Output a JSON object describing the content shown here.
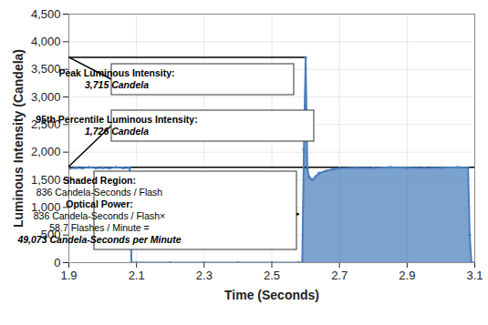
{
  "chart_data": {
    "type": "area",
    "xlabel": "Time (Seconds)",
    "ylabel": "Luminous Intensity (Candela)",
    "x": [
      1.9,
      1.92,
      1.94,
      1.96,
      1.98,
      2.0,
      2.02,
      2.04,
      2.06,
      2.08,
      2.085,
      2.1,
      2.2,
      2.3,
      2.4,
      2.5,
      2.58,
      2.59,
      2.595,
      2.6,
      2.605,
      2.61,
      2.62,
      2.63,
      2.64,
      2.66,
      2.68,
      2.7,
      2.75,
      2.8,
      2.85,
      2.9,
      2.95,
      3.0,
      3.05,
      3.08,
      3.085,
      3.09,
      3.1
    ],
    "values": [
      1700,
      1720,
      1710,
      1725,
      1715,
      1720,
      1710,
      1725,
      1715,
      1720,
      0,
      0,
      0,
      0,
      0,
      0,
      0,
      0,
      2050,
      3715,
      1700,
      1550,
      1500,
      1560,
      1620,
      1660,
      1690,
      1710,
      1720,
      1715,
      1725,
      1720,
      1715,
      1720,
      1725,
      1720,
      500,
      0,
      0
    ],
    "color": "#4a7ebb",
    "marker": "circle",
    "xlim": [
      1.9,
      3.1
    ],
    "xticks": [
      1.9,
      2.1,
      2.3,
      2.5,
      2.7,
      2.9,
      3.1
    ],
    "ylim": [
      0,
      4500
    ],
    "yticks": [
      0,
      500,
      {
        "value": 1000,
        "label": "1,000"
      },
      {
        "value": 1500,
        "label": "1,500"
      },
      {
        "value": 2000,
        "label": "2,000"
      },
      {
        "value": 2500,
        "label": "2,500"
      },
      {
        "value": 3000,
        "label": "3,000"
      },
      {
        "value": 3500,
        "label": "3,500"
      },
      {
        "value": 4000,
        "label": "4,000"
      },
      {
        "value": 4500,
        "label": "4,500"
      }
    ],
    "grid": true,
    "shaded_region": [
      2.59,
      3.09
    ],
    "annotations": [
      {
        "lines": [
          "Peak Luminous Intensity:",
          "3,715 Candela"
        ],
        "value": 3715
      },
      {
        "lines": [
          "95th Percentile Luminous Intensity:",
          "1,726 Candela"
        ],
        "value": 1726
      },
      {
        "lines": [
          "Shaded Region:",
          "836 Candela-Seconds / Flash",
          "Optical Power:",
          "836 Candela-Seconds / Flash×",
          "58.7 Flashes / Minute =",
          "49,073 Candela-Seconds per Minute"
        ]
      }
    ]
  }
}
